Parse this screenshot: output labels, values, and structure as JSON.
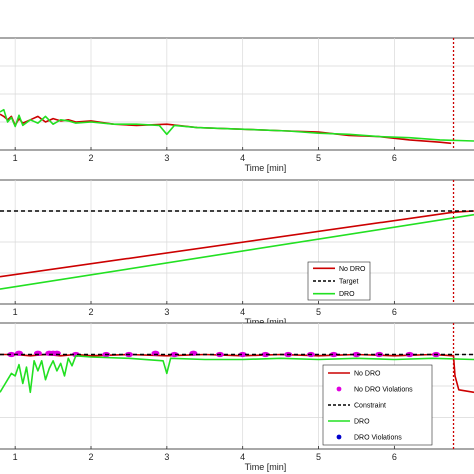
{
  "colors": {
    "no_dro": "#cc0000",
    "dro": "#22e022",
    "target": "#000000",
    "no_dro_violations": "#e000e0",
    "dro_violations": "#0000cc",
    "end_marker": "#cc0000",
    "grid": "#d9d9d9"
  },
  "chart_data": [
    {
      "type": "line",
      "xlabel": "Time [min]",
      "x_ticks": [
        "1",
        "2",
        "3",
        "4",
        "5",
        "6"
      ],
      "xlim": [
        0.8,
        7.05
      ],
      "ylim": [
        0,
        1
      ],
      "grid": true,
      "series": [
        {
          "key": "no_dro",
          "style": "solid",
          "x": [
            0.8,
            0.85,
            0.9,
            0.95,
            1.0,
            1.05,
            1.1,
            1.2,
            1.3,
            1.4,
            1.5,
            1.6,
            1.7,
            1.8,
            2.0,
            2.3,
            2.6,
            3.0,
            3.4,
            3.8,
            4.2,
            4.6,
            5.0,
            5.4,
            5.8,
            6.2,
            6.6,
            6.75
          ],
          "y": [
            0.32,
            0.3,
            0.27,
            0.3,
            0.22,
            0.28,
            0.24,
            0.27,
            0.3,
            0.25,
            0.28,
            0.26,
            0.27,
            0.25,
            0.26,
            0.23,
            0.22,
            0.23,
            0.2,
            0.19,
            0.18,
            0.17,
            0.16,
            0.13,
            0.12,
            0.09,
            0.07,
            0.06
          ]
        },
        {
          "key": "dro",
          "style": "solid",
          "x": [
            0.8,
            0.85,
            0.9,
            0.95,
            1.0,
            1.05,
            1.1,
            1.2,
            1.3,
            1.4,
            1.5,
            1.6,
            1.7,
            1.8,
            2.0,
            2.3,
            2.6,
            2.9,
            3.0,
            3.1,
            3.4,
            3.8,
            4.2,
            4.6,
            5.0,
            5.4,
            5.8,
            6.2,
            6.6,
            7.05
          ],
          "y": [
            0.34,
            0.36,
            0.25,
            0.29,
            0.21,
            0.31,
            0.22,
            0.27,
            0.24,
            0.3,
            0.23,
            0.27,
            0.26,
            0.24,
            0.25,
            0.23,
            0.23,
            0.22,
            0.14,
            0.22,
            0.2,
            0.19,
            0.18,
            0.17,
            0.15,
            0.14,
            0.12,
            0.11,
            0.09,
            0.08
          ]
        }
      ],
      "end_marker_x": 6.78
    },
    {
      "type": "line",
      "xlabel": "Time [min]",
      "x_ticks": [
        "1",
        "2",
        "3",
        "4",
        "5",
        "6"
      ],
      "xlim": [
        0.8,
        7.05
      ],
      "ylim": [
        0,
        1
      ],
      "grid": true,
      "legend_position": "bottom-right",
      "series": [
        {
          "key": "no_dro",
          "name": "No DRO",
          "style": "solid",
          "x": [
            0.8,
            6.78,
            7.05
          ],
          "y": [
            0.22,
            0.74,
            0.75
          ]
        },
        {
          "key": "target",
          "name": "Target",
          "style": "dashed",
          "x": [
            0.8,
            7.05
          ],
          "y": [
            0.75,
            0.75
          ]
        },
        {
          "key": "dro",
          "name": "DRO",
          "style": "solid",
          "x": [
            0.8,
            7.05
          ],
          "y": [
            0.12,
            0.72
          ]
        }
      ],
      "end_marker_x": 6.78
    },
    {
      "type": "line",
      "xlabel": "Time [min]",
      "x_ticks": [
        "1",
        "2",
        "3",
        "4",
        "5",
        "6"
      ],
      "xlim": [
        0.8,
        7.05
      ],
      "ylim": [
        0,
        1
      ],
      "grid": true,
      "legend_position": "bottom-right",
      "series": [
        {
          "key": "no_dro",
          "name": "No DRO",
          "style": "solid",
          "x": [
            0.8,
            1.0,
            1.2,
            1.4,
            1.6,
            1.8,
            2.0,
            2.5,
            3.0,
            3.5,
            4.0,
            4.5,
            5.0,
            5.5,
            6.0,
            6.5,
            6.78,
            6.8,
            6.85,
            7.05
          ],
          "y": [
            0.75,
            0.75,
            0.74,
            0.75,
            0.74,
            0.75,
            0.74,
            0.75,
            0.74,
            0.75,
            0.74,
            0.75,
            0.74,
            0.75,
            0.74,
            0.75,
            0.74,
            0.58,
            0.47,
            0.45
          ]
        },
        {
          "key": "no_dro_violations",
          "name": "No DRO Violations",
          "style": "markers",
          "x": [
            0.95,
            1.05,
            1.3,
            1.45,
            1.5,
            1.55,
            1.8,
            2.2,
            2.5,
            2.85,
            3.1,
            3.35,
            3.7,
            4.0,
            4.3,
            4.6,
            4.9,
            5.2,
            5.5,
            5.8,
            6.2,
            6.55
          ],
          "y": [
            0.75,
            0.76,
            0.76,
            0.76,
            0.76,
            0.76,
            0.75,
            0.75,
            0.75,
            0.76,
            0.75,
            0.76,
            0.75,
            0.75,
            0.75,
            0.75,
            0.75,
            0.75,
            0.75,
            0.75,
            0.75,
            0.75
          ]
        },
        {
          "key": "target",
          "name": "Constraint",
          "style": "dashed",
          "x": [
            0.8,
            7.05
          ],
          "y": [
            0.75,
            0.75
          ]
        },
        {
          "key": "dro",
          "name": "DRO",
          "style": "solid",
          "x": [
            0.8,
            0.85,
            0.9,
            0.95,
            1.0,
            1.05,
            1.1,
            1.15,
            1.2,
            1.25,
            1.3,
            1.35,
            1.4,
            1.45,
            1.5,
            1.55,
            1.6,
            1.65,
            1.7,
            1.75,
            1.8,
            2.0,
            2.5,
            2.95,
            3.0,
            3.05,
            3.5,
            4.0,
            4.5,
            5.0,
            5.5,
            6.0,
            6.5,
            7.05
          ],
          "y": [
            0.45,
            0.5,
            0.55,
            0.6,
            0.58,
            0.67,
            0.52,
            0.65,
            0.45,
            0.7,
            0.62,
            0.7,
            0.55,
            0.64,
            0.7,
            0.62,
            0.68,
            0.58,
            0.72,
            0.66,
            0.74,
            0.73,
            0.72,
            0.7,
            0.6,
            0.72,
            0.71,
            0.71,
            0.72,
            0.71,
            0.72,
            0.71,
            0.72,
            0.71
          ]
        },
        {
          "key": "dro_violations",
          "name": "DRO Violations",
          "style": "markers",
          "x": [],
          "y": []
        }
      ],
      "end_marker_x": 6.78
    }
  ]
}
